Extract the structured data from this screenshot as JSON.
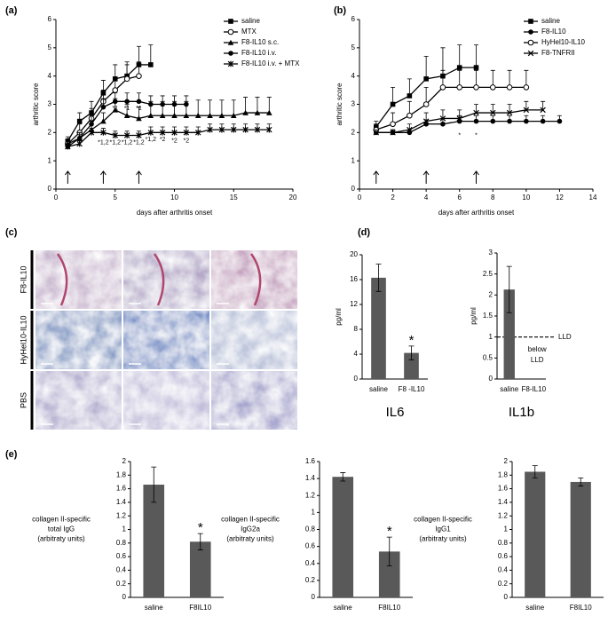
{
  "panels": [
    "(a)",
    "(b)",
    "(c)",
    "(d)",
    "(e)"
  ],
  "micrographs": {
    "rows": [
      "F8-IL10",
      "HyHel10-IL10",
      "PBS"
    ]
  },
  "chart_data": [
    {
      "type": "line",
      "xlabel": "days after arthritis onset",
      "ylabel": "arthritic score",
      "xlim": [
        0,
        20
      ],
      "xticks": [
        0,
        5,
        10,
        15,
        20
      ],
      "ylim": [
        0,
        6
      ],
      "yticks": [
        0,
        1,
        2,
        3,
        4,
        5,
        6
      ],
      "legend": "upper right",
      "arrows": [
        1,
        4,
        7
      ],
      "series": [
        {
          "name": "saline",
          "color": "#000000",
          "marker": "square",
          "x": [
            1,
            2,
            3,
            4,
            5,
            6,
            7,
            8
          ],
          "values": [
            1.7,
            2.4,
            2.7,
            3.4,
            3.9,
            4.0,
            4.4,
            4.4
          ],
          "errors": [
            0.15,
            0.3,
            0.4,
            0.45,
            0.5,
            0.5,
            0.65,
            0.7
          ]
        },
        {
          "name": "MTX",
          "color": "#000000",
          "marker": "circle-open",
          "x": [
            1,
            2,
            3,
            4,
            5,
            6,
            7
          ],
          "values": [
            1.6,
            2.0,
            2.5,
            3.1,
            3.5,
            3.9,
            4.0
          ],
          "errors": [
            0.1,
            0.3,
            0.35,
            0.4,
            0.45,
            0.5,
            0.5
          ]
        },
        {
          "name": "F8-IL10 s.c.",
          "color": "#000000",
          "marker": "triangle",
          "x": [
            1,
            2,
            3,
            4,
            5,
            6,
            7,
            8,
            9,
            10,
            11,
            12,
            13,
            14,
            15,
            16,
            17,
            18
          ],
          "values": [
            1.6,
            1.8,
            2.1,
            2.4,
            2.8,
            2.6,
            2.5,
            2.6,
            2.6,
            2.6,
            2.6,
            2.6,
            2.6,
            2.6,
            2.6,
            2.7,
            2.7,
            2.7
          ],
          "errors": [
            0.1,
            0.2,
            0.3,
            0.3,
            0.4,
            0.4,
            0.4,
            0.5,
            0.5,
            0.5,
            0.5,
            0.55,
            0.55,
            0.55,
            0.55,
            0.55,
            0.55,
            0.55
          ]
        },
        {
          "name": "F8-IL10 i.v.",
          "color": "#000000",
          "marker": "circle",
          "x": [
            1,
            2,
            3,
            4,
            5,
            6,
            7,
            8,
            9,
            10,
            11
          ],
          "values": [
            1.5,
            1.8,
            2.3,
            2.9,
            3.1,
            3.1,
            3.1,
            3.0,
            3.0,
            3.0,
            3.0
          ],
          "errors": [
            0.1,
            0.2,
            0.3,
            0.3,
            0.3,
            0.3,
            0.3,
            0.3,
            0.3,
            0.3,
            0.3
          ]
        },
        {
          "name": "F8-IL10 i.v.  + MTX",
          "color": "#000000",
          "marker": "star",
          "x": [
            1,
            2,
            3,
            4,
            5,
            6,
            7,
            8,
            9,
            10,
            11,
            12,
            13,
            14,
            15,
            16,
            17,
            18
          ],
          "values": [
            1.5,
            1.6,
            2.0,
            2.0,
            1.9,
            1.9,
            1.9,
            2.0,
            2.0,
            2.0,
            2.0,
            2.0,
            2.1,
            2.1,
            2.1,
            2.1,
            2.1,
            2.1
          ],
          "errors": [
            0.1,
            0.1,
            0.15,
            0.15,
            0.15,
            0.15,
            0.15,
            0.2,
            0.2,
            0.2,
            0.2,
            0.2,
            0.2,
            0.2,
            0.2,
            0.2,
            0.2,
            0.2
          ]
        }
      ],
      "annotations": [
        {
          "x": 4,
          "y": 1.65,
          "text": "*1,2"
        },
        {
          "x": 5,
          "y": 1.65,
          "text": "*1,2"
        },
        {
          "x": 6,
          "y": 1.65,
          "text": "*1,2"
        },
        {
          "x": 7,
          "y": 1.65,
          "text": "*1,2"
        },
        {
          "x": 8,
          "y": 1.75,
          "text": "*1,2"
        },
        {
          "x": 9,
          "y": 1.75,
          "text": "*2"
        },
        {
          "x": 10,
          "y": 1.7,
          "text": "*2"
        },
        {
          "x": 11,
          "y": 1.7,
          "text": "*2"
        },
        {
          "x": 5,
          "y": 2.85,
          "text": "*1"
        },
        {
          "x": 6,
          "y": 2.85,
          "text": "*1"
        },
        {
          "x": 7,
          "y": 2.85,
          "text": "*1"
        }
      ]
    },
    {
      "type": "line",
      "xlabel": "days after arthritis onset",
      "ylabel": "arthritic score",
      "xlim": [
        0,
        14
      ],
      "xticks": [
        0,
        2,
        4,
        6,
        8,
        10,
        12,
        14
      ],
      "ylim": [
        0,
        6
      ],
      "yticks": [
        0,
        1,
        2,
        3,
        4,
        5,
        6
      ],
      "legend": "upper right",
      "arrows": [
        1,
        4,
        7
      ],
      "series": [
        {
          "name": "saline",
          "color": "#000000",
          "marker": "square",
          "x": [
            1,
            2,
            3,
            4,
            5,
            6,
            7
          ],
          "values": [
            2.2,
            3.0,
            3.3,
            3.9,
            4.0,
            4.3,
            4.3
          ],
          "errors": [
            0.2,
            0.6,
            0.6,
            0.8,
            1.0,
            0.8,
            0.8
          ]
        },
        {
          "name": "F8-IL10",
          "color": "#000000",
          "marker": "circle",
          "x": [
            1,
            2,
            3,
            4,
            5,
            6,
            7,
            8,
            9,
            10,
            11,
            12
          ],
          "values": [
            2.0,
            2.0,
            2.0,
            2.3,
            2.3,
            2.4,
            2.4,
            2.4,
            2.4,
            2.4,
            2.4,
            2.4
          ],
          "errors": [
            0.1,
            0.1,
            0.1,
            0.15,
            0.2,
            0.2,
            0.2,
            0.2,
            0.2,
            0.2,
            0.2,
            0.2
          ]
        },
        {
          "name": "HyHel10-IL10",
          "color": "#000000",
          "marker": "circle-open",
          "x": [
            1,
            2,
            3,
            4,
            5,
            6,
            7,
            8,
            9,
            10
          ],
          "values": [
            2.1,
            2.3,
            2.6,
            3.0,
            3.6,
            3.6,
            3.6,
            3.6,
            3.6,
            3.6
          ],
          "errors": [
            0.2,
            0.4,
            0.5,
            0.6,
            0.6,
            0.6,
            0.6,
            0.6,
            0.6,
            0.6
          ]
        },
        {
          "name": "F8-TNFRII",
          "color": "#000000",
          "marker": "x",
          "x": [
            1,
            2,
            3,
            4,
            5,
            6,
            7,
            8,
            9,
            10,
            11
          ],
          "values": [
            2.0,
            2.0,
            2.1,
            2.4,
            2.5,
            2.5,
            2.7,
            2.7,
            2.7,
            2.8,
            2.8
          ],
          "errors": [
            0.1,
            0.1,
            0.2,
            0.3,
            0.3,
            0.3,
            0.3,
            0.3,
            0.3,
            0.3,
            0.3
          ]
        }
      ],
      "annotations": [
        {
          "x": 6,
          "y": 1.9,
          "text": "*"
        },
        {
          "x": 7,
          "y": 1.9,
          "text": "*"
        }
      ]
    },
    {
      "type": "bar",
      "title": "IL6",
      "ylabel": "pg/ml",
      "categories": [
        "saline",
        "F8 -IL10"
      ],
      "values": [
        16.3,
        4.2
      ],
      "errors": [
        2.2,
        1.1
      ],
      "significance": [
        null,
        "*"
      ],
      "color": "#595959",
      "ylim": [
        0,
        20
      ],
      "yticks": [
        0,
        4,
        8,
        12,
        16,
        20
      ]
    },
    {
      "type": "bar",
      "title": "IL1b",
      "ylabel": "pg/ml",
      "categories": [
        "saline",
        "F8-IL10"
      ],
      "values": [
        2.13,
        null
      ],
      "errors": [
        0.55,
        null
      ],
      "color": "#595959",
      "ylim": [
        0,
        3
      ],
      "yticks": [
        0,
        0.5,
        1,
        1.5,
        2,
        2.5,
        3
      ],
      "reference_line": {
        "value": 1,
        "label": "LLD"
      },
      "note": [
        "below",
        "LLD"
      ]
    },
    {
      "type": "bar",
      "ylabel": [
        "collagen II-specific",
        "total IgG",
        "(arbitraty  units)"
      ],
      "categories": [
        "saline",
        "F8IL10"
      ],
      "values": [
        1.66,
        0.82
      ],
      "errors": [
        0.26,
        0.12
      ],
      "significance": [
        null,
        "*"
      ],
      "color": "#595959",
      "ylim": [
        0,
        2
      ],
      "yticks": [
        0,
        0.2,
        0.4,
        0.6,
        0.8,
        1,
        1.2,
        1.4,
        1.6,
        1.8,
        2
      ]
    },
    {
      "type": "bar",
      "ylabel": [
        "collagen II-specific",
        "IgG2a",
        "(arbitraty units)"
      ],
      "categories": [
        "saline",
        "F8IL10"
      ],
      "values": [
        1.42,
        0.54
      ],
      "errors": [
        0.05,
        0.17
      ],
      "significance": [
        null,
        "*"
      ],
      "color": "#595959",
      "ylim": [
        0,
        1.6
      ],
      "yticks": [
        0,
        0.2,
        0.4,
        0.6,
        0.8,
        1,
        1.2,
        1.4,
        1.6
      ]
    },
    {
      "type": "bar",
      "ylabel": [
        "collagen II-specific",
        "IgG1",
        "(arbitraty units)"
      ],
      "categories": [
        "saline",
        "F8IL10"
      ],
      "values": [
        1.85,
        1.7
      ],
      "errors": [
        0.09,
        0.06
      ],
      "color": "#595959",
      "ylim": [
        0,
        2
      ],
      "yticks": [
        0,
        0.2,
        0.4,
        0.6,
        0.8,
        1,
        1.2,
        1.4,
        1.6,
        1.8,
        2
      ]
    }
  ]
}
